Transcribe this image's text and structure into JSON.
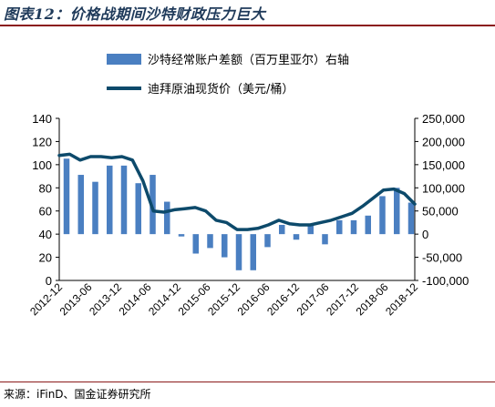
{
  "title": "图表12：价格战期间沙特财政压力巨大",
  "source": "来源：iFinD、国金证券研究所",
  "colors": {
    "bar": "#4a7fc1",
    "line": "#0d4a6b",
    "rule": "#8b1a1a"
  },
  "chart_data": {
    "type": "bar+line",
    "legend_position": "top",
    "grid": false,
    "x_labels": [
      "2012-12",
      "2013-06",
      "2013-12",
      "2014-06",
      "2014-12",
      "2015-06",
      "2015-12",
      "2016-06",
      "2016-12",
      "2017-06",
      "2017-12",
      "2018-06",
      "2018-12"
    ],
    "y_left": {
      "min": 0,
      "max": 140,
      "ticks": [
        0,
        20,
        40,
        60,
        80,
        100,
        120,
        140
      ]
    },
    "y_right": {
      "min": -100000,
      "max": 250000,
      "ticks": [
        -100000,
        -50000,
        0,
        50000,
        100000,
        150000,
        200000,
        250000
      ],
      "tick_labels": [
        "-100,000",
        "-50,000",
        "0",
        "50,000",
        "100,000",
        "150,000",
        "200,000",
        "250,000"
      ]
    },
    "series": [
      {
        "name": "沙特经常账户差额（百万里亚尔）右轴",
        "type": "bar",
        "axis": "right",
        "values": [
          163000,
          128000,
          113000,
          148000,
          148000,
          110000,
          128000,
          70000,
          -5000,
          -42000,
          -30000,
          -50000,
          -78000,
          -78000,
          -28000,
          20000,
          -12000,
          20000,
          -22000,
          30000,
          30000,
          40000,
          82000,
          100000,
          68000
        ]
      },
      {
        "name": "迪拜原油现货价（美元/桶）",
        "type": "line",
        "axis": "left",
        "values": [
          108,
          109,
          104,
          107,
          107,
          106,
          107,
          104,
          86,
          60,
          59,
          61,
          62,
          63,
          60,
          52,
          50,
          44,
          44,
          45,
          48,
          52,
          49,
          48,
          48,
          50,
          52,
          55,
          58,
          64,
          71,
          78,
          79,
          75,
          66
        ]
      }
    ]
  }
}
